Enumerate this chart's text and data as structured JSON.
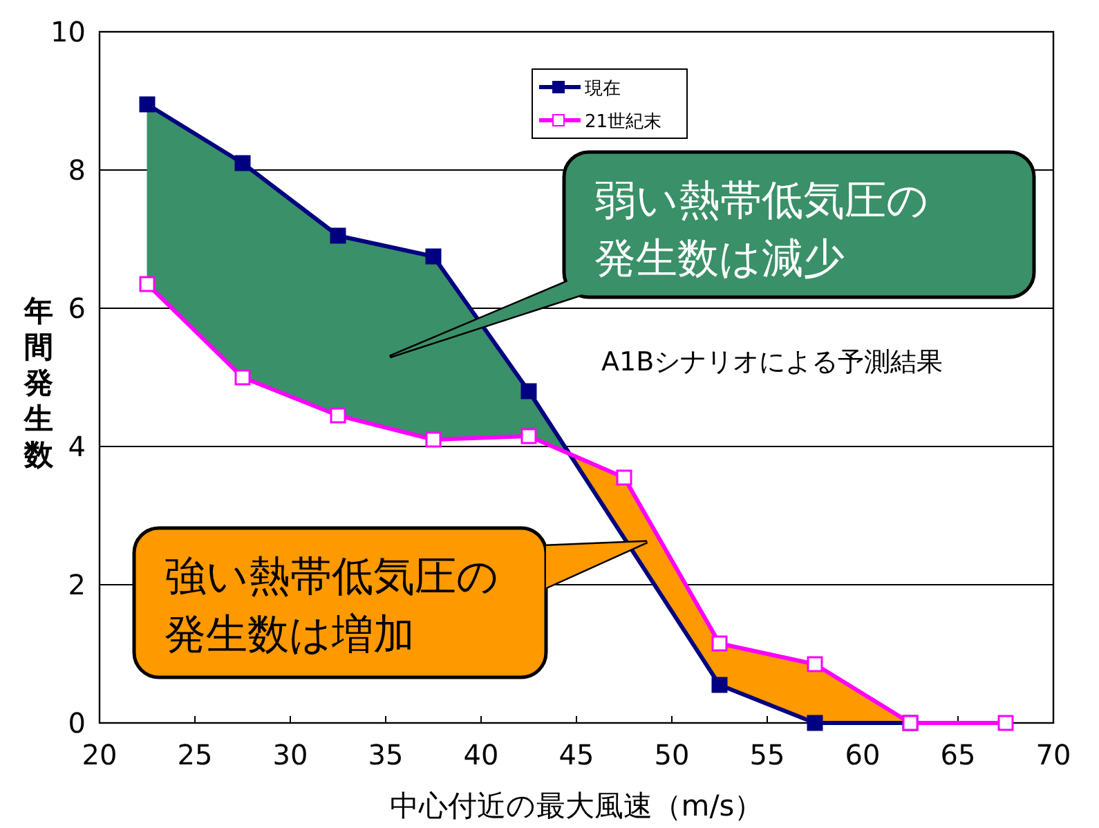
{
  "chart_data": {
    "type": "line",
    "xlabel": "中心付近の最大風速（m/s）",
    "ylabel": "年間発生数",
    "x": [
      22.5,
      27.5,
      32.5,
      37.5,
      42.5,
      47.5,
      52.5,
      57.5,
      62.5,
      67.5
    ],
    "series": [
      {
        "name": "現在",
        "color": "#000080",
        "values": [
          8.95,
          8.1,
          7.05,
          6.75,
          4.8,
          null,
          0.55,
          0,
          0,
          null
        ]
      },
      {
        "name": "21世紀末",
        "color": "#ff00ff",
        "values": [
          6.35,
          5.0,
          4.45,
          4.1,
          4.15,
          3.55,
          1.15,
          0.85,
          0,
          0
        ]
      }
    ],
    "xlim": [
      20,
      70
    ],
    "xticks": [
      20,
      25,
      30,
      35,
      40,
      45,
      50,
      55,
      60,
      65,
      70
    ],
    "ylim": [
      0,
      10
    ],
    "yticks": [
      0,
      2,
      4,
      6,
      8,
      10
    ],
    "grid": "y",
    "legend": "top",
    "marker": "square",
    "line_style": "solid",
    "annotations": [
      "弱い熱帯低気圧の発生数は減少",
      "強い熱帯低気圧の発生数は増加",
      "A1Bシナリオによる予測結果"
    ]
  }
}
